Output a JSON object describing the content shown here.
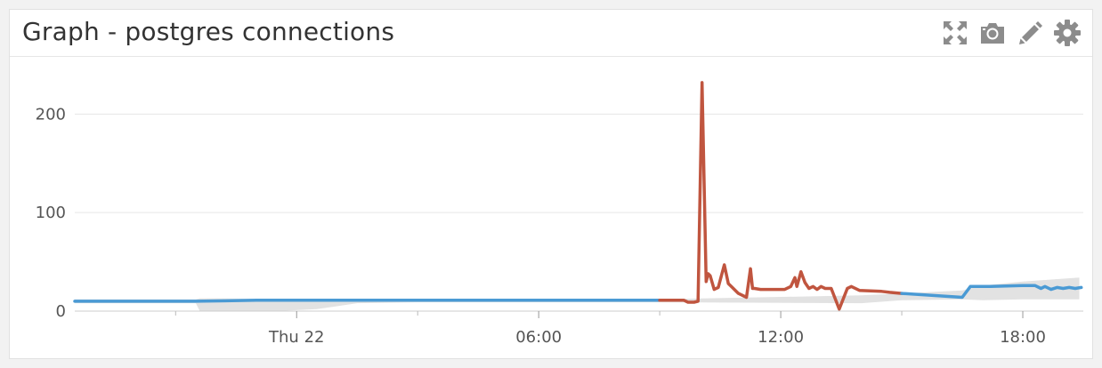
{
  "widget": {
    "title": "Graph - postgres connections",
    "tools": [
      {
        "name": "expand-icon"
      },
      {
        "name": "camera-icon"
      },
      {
        "name": "pencil-icon"
      },
      {
        "name": "gear-icon"
      }
    ]
  },
  "colors": {
    "normal": "#4a9ad4",
    "anomaly": "#c0553f",
    "band": "#e2e2e2",
    "grid": "#e6e6e6",
    "tool": "#8c8c8c"
  },
  "chart_data": {
    "type": "line",
    "title": "",
    "xlabel": "",
    "ylabel": "",
    "ylim": [
      0,
      240
    ],
    "xlim": [
      -5.5,
      19.5
    ],
    "grid": true,
    "y_ticks": [
      {
        "value": 0,
        "label": "0"
      },
      {
        "value": 100,
        "label": "100"
      },
      {
        "value": 200,
        "label": "200"
      }
    ],
    "x_ticks": [
      {
        "value": 0,
        "label": "Thu 22"
      },
      {
        "value": 6,
        "label": "06:00"
      },
      {
        "value": 12,
        "label": "12:00"
      },
      {
        "value": 18,
        "label": "18:00"
      }
    ],
    "x_minor_ticks": [
      -3,
      3,
      9,
      15
    ],
    "series": [
      {
        "style": "normal",
        "x": [
          -5.5,
          -2.5,
          -1,
          1.5,
          3,
          4,
          5,
          6,
          7,
          8,
          9.0
        ],
        "y": [
          10,
          10,
          11,
          11,
          11,
          11,
          11,
          11,
          11,
          11,
          11
        ]
      },
      {
        "style": "anomaly",
        "x": [
          9.0,
          9.6,
          9.7,
          9.85,
          9.95,
          10.05,
          10.15,
          10.2,
          10.25,
          10.35,
          10.45,
          10.6,
          10.7,
          10.8,
          10.95,
          11.15,
          11.25,
          11.3,
          11.35,
          11.5,
          11.8,
          12.1,
          12.25,
          12.35,
          12.4,
          12.5,
          12.6,
          12.7,
          12.8,
          12.9,
          13.0,
          13.1,
          13.25,
          13.45,
          13.65,
          13.75,
          13.95,
          14.5,
          14.7,
          15.0
        ],
        "y": [
          11,
          11,
          9,
          9,
          10,
          232,
          30,
          38,
          36,
          22,
          24,
          47,
          28,
          24,
          18,
          14,
          43,
          23,
          23,
          22,
          22,
          22,
          25,
          34,
          25,
          40,
          29,
          23,
          25,
          22,
          25,
          23,
          23,
          2,
          23,
          25,
          21,
          20,
          19,
          18
        ]
      },
      {
        "style": "normal",
        "x": [
          15.0,
          16.5,
          16.7,
          16.8,
          17.2,
          18.0,
          18.3,
          18.45,
          18.55,
          18.7,
          18.85,
          19.0,
          19.15,
          19.3,
          19.45
        ],
        "y": [
          18,
          14,
          25,
          25,
          25,
          26,
          26,
          23,
          25,
          22,
          24,
          23,
          24,
          23,
          24
        ]
      }
    ],
    "band": {
      "x": [
        -5.5,
        -2.5,
        -2.4,
        -2.0,
        -0.5,
        0.5,
        1.5,
        3,
        9,
        14.0,
        15.0,
        16.5,
        17.0,
        18.0,
        19.4
      ],
      "upper": [
        12,
        12,
        13,
        13,
        12,
        12,
        12,
        12,
        12,
        16,
        18,
        21,
        26,
        30,
        34
      ],
      "lower": [
        8,
        8,
        0,
        0,
        0,
        2,
        8,
        9,
        9,
        8,
        11,
        12,
        11,
        12,
        12
      ]
    }
  }
}
